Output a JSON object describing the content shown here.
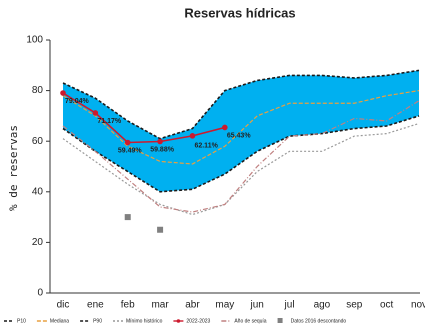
{
  "chart_data": {
    "type": "line",
    "title": "Reservas hídricas",
    "title_color": "#7030a0",
    "y_label": "% de reservas",
    "categories": [
      "dic",
      "ene",
      "feb",
      "mar",
      "abr",
      "may",
      "jun",
      "jul",
      "ago",
      "sep",
      "oct",
      "nov"
    ],
    "ylim": [
      0,
      100
    ],
    "yticks": [
      0,
      20,
      40,
      60,
      80,
      100
    ],
    "band_color": "#00b0f0",
    "series": [
      {
        "name": "P10",
        "color": "#1a1a1a",
        "dash": "3,2",
        "values": [
          65,
          56,
          48,
          40,
          41,
          47,
          56,
          62,
          63,
          65,
          66,
          70
        ]
      },
      {
        "name": "Mediana",
        "color": "#e8a040",
        "dash": "4,2",
        "values": [
          78,
          70,
          58,
          52,
          51,
          58,
          70,
          75,
          75,
          75,
          78,
          80
        ]
      },
      {
        "name": "P90",
        "color": "#1a1a1a",
        "dash": "3,2",
        "values": [
          83,
          77,
          68,
          61,
          65,
          80,
          84,
          86,
          86,
          85,
          86,
          88
        ]
      },
      {
        "name": "Mínimo histórico",
        "color": "#999999",
        "dash": "2,2",
        "values": [
          61,
          52,
          43,
          35,
          31,
          35,
          48,
          56,
          56,
          62,
          63,
          67
        ]
      },
      {
        "name": "2022-2023",
        "color": "#cc1a2e",
        "marker": "circle",
        "values": [
          79.04,
          71.17,
          59.49,
          59.88,
          62.11,
          65.43,
          null,
          null,
          null,
          null,
          null,
          null
        ],
        "value_labels": [
          "79.04%",
          "71.17%",
          "59.49%",
          "59.88%",
          "62.11%",
          "65.43%",
          null,
          null,
          null,
          null,
          null,
          null
        ]
      },
      {
        "name": "Año de sequía",
        "color": "#c08080",
        "dash": "5,2,1,2",
        "values": [
          66,
          56,
          45,
          34,
          32,
          35,
          50,
          62,
          63,
          69,
          68,
          76
        ]
      },
      {
        "name": "Datos 2016 descontando",
        "color": "#808080",
        "marker": "square",
        "no_line": true,
        "values": [
          null,
          null,
          30,
          25,
          null,
          null,
          null,
          null,
          null,
          null,
          null,
          null
        ]
      }
    ]
  }
}
